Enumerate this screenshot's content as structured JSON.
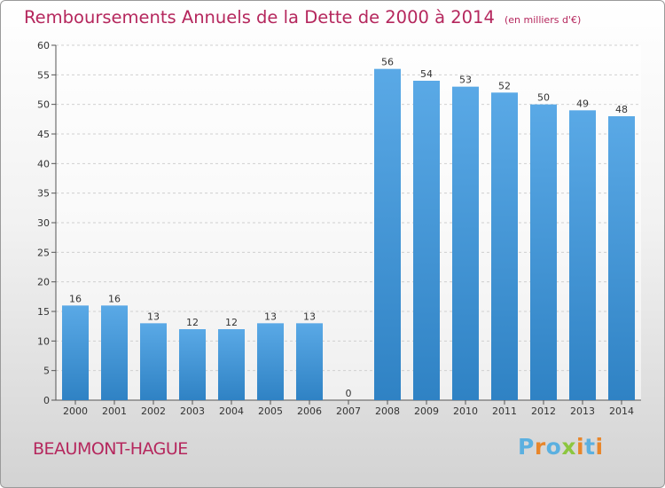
{
  "chart_data": {
    "type": "bar",
    "title": "Remboursements Annuels de la Dette de 2000 à 2014",
    "subtitle": "(en milliers d'€)",
    "categories": [
      "2000",
      "2001",
      "2002",
      "2003",
      "2004",
      "2005",
      "2006",
      "2007",
      "2008",
      "2009",
      "2010",
      "2011",
      "2012",
      "2013",
      "2014"
    ],
    "values": [
      16,
      16,
      13,
      12,
      12,
      13,
      13,
      0,
      56,
      54,
      53,
      52,
      50,
      49,
      48
    ],
    "xlabel": "",
    "ylabel": "",
    "ylim": [
      0,
      60
    ],
    "yticks": [
      0,
      5,
      10,
      15,
      20,
      25,
      30,
      35,
      40,
      45,
      50,
      55,
      60
    ],
    "grid": true,
    "bar_color": "#5aa9e6",
    "bar_color_dark": "#2f82c4"
  },
  "footer": {
    "place": "BEAUMONT-HAGUE",
    "logo_letters": [
      "P",
      "r",
      "o",
      "x",
      "i",
      "t",
      "i"
    ],
    "logo_colors": [
      "#5bb0e0",
      "#e8862a",
      "#5bb0e0",
      "#8cc63f",
      "#e8862a",
      "#5bb0e0",
      "#e8862a"
    ]
  }
}
